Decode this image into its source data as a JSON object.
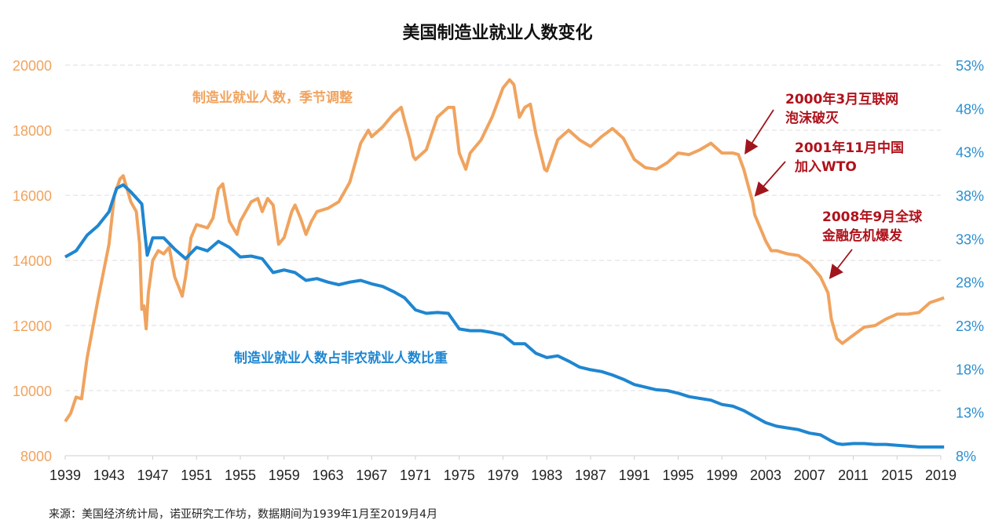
{
  "chart_data": {
    "type": "line",
    "title": "美国制造业就业人数变化",
    "source": "来源：美国经济统计局，诺亚研究工作坊，数据期间为1939年1月至2019月4月",
    "xlim": [
      1939,
      2019
    ],
    "x_ticks": [
      "1939",
      "1943",
      "1947",
      "1951",
      "1955",
      "1959",
      "1963",
      "1967",
      "1971",
      "1975",
      "1979",
      "1983",
      "1987",
      "1991",
      "1995",
      "1999",
      "2003",
      "2007",
      "2011",
      "2015",
      "2019"
    ],
    "y_left": {
      "lim": [
        8000,
        20000
      ],
      "ticks": [
        "8000",
        "10000",
        "12000",
        "14000",
        "16000",
        "18000",
        "20000"
      ],
      "color": "#f0a35e"
    },
    "y_right": {
      "lim": [
        8,
        53
      ],
      "ticks": [
        "8%",
        "13%",
        "18%",
        "23%",
        "28%",
        "33%",
        "38%",
        "43%",
        "48%",
        "53%"
      ],
      "color": "#2a8fd0"
    },
    "grid": "horizontal dashed",
    "series": [
      {
        "name": "制造业就业人数，季节调整",
        "axis": "left",
        "color": "#f0a35e",
        "x": [
          1939,
          1939.5,
          1940,
          1940.5,
          1941,
          1942,
          1943,
          1943.5,
          1944,
          1944.3,
          1945,
          1945.5,
          1945.8,
          1946,
          1946.2,
          1946.4,
          1946.6,
          1947,
          1947.5,
          1948,
          1948.5,
          1949,
          1949.7,
          1950,
          1950.5,
          1951,
          1952,
          1952.5,
          1953,
          1953.4,
          1954,
          1954.7,
          1955,
          1956,
          1956.6,
          1957,
          1957.5,
          1958,
          1958.5,
          1959,
          1959.7,
          1960,
          1960.5,
          1961,
          1961.5,
          1962,
          1963,
          1964,
          1965,
          1966,
          1966.7,
          1967,
          1968,
          1969,
          1969.7,
          1970,
          1970.5,
          1970.8,
          1971,
          1972,
          1973,
          1974,
          1974.5,
          1975,
          1975.6,
          1976,
          1977,
          1978,
          1979,
          1979.6,
          1980,
          1980.5,
          1981,
          1981.5,
          1982,
          1982.8,
          1983,
          1984,
          1985,
          1986,
          1987,
          1988,
          1989,
          1990,
          1991,
          1992,
          1993,
          1994,
          1995,
          1996,
          1997,
          1998,
          1999,
          2000,
          2000.5,
          2001,
          2001.8,
          2002,
          2003,
          2003.5,
          2004,
          2005,
          2006,
          2007,
          2008,
          2008.7,
          2009,
          2009.5,
          2010,
          2011,
          2012,
          2013,
          2014,
          2015,
          2016,
          2017,
          2018,
          2019.3
        ],
        "values": [
          9050,
          9300,
          9800,
          9750,
          11000,
          12800,
          14500,
          16000,
          16500,
          16600,
          15800,
          15500,
          14500,
          12500,
          12600,
          11900,
          13000,
          14000,
          14300,
          14200,
          14400,
          13500,
          12900,
          13500,
          14700,
          15100,
          15000,
          15300,
          16200,
          16350,
          15200,
          14800,
          15200,
          15800,
          15900,
          15500,
          15900,
          15700,
          14500,
          14700,
          15500,
          15700,
          15300,
          14800,
          15200,
          15500,
          15600,
          15800,
          16400,
          17600,
          18000,
          17800,
          18100,
          18500,
          18700,
          18300,
          17700,
          17200,
          17100,
          17400,
          18400,
          18700,
          18700,
          17300,
          16800,
          17300,
          17700,
          18400,
          19300,
          19550,
          19400,
          18400,
          18700,
          18800,
          17900,
          16800,
          16750,
          17700,
          18000,
          17700,
          17500,
          17800,
          18050,
          17750,
          17100,
          16850,
          16800,
          17000,
          17300,
          17250,
          17400,
          17600,
          17300,
          17300,
          17250,
          16800,
          15800,
          15400,
          14600,
          14300,
          14300,
          14200,
          14150,
          13900,
          13500,
          13000,
          12200,
          11600,
          11450,
          11700,
          11950,
          12000,
          12200,
          12350,
          12350,
          12400,
          12700,
          12850
        ]
      },
      {
        "name": "制造业就业人数占非农就业人数比重",
        "axis": "right",
        "color": "#1f86d0",
        "x": [
          1939,
          1940,
          1941,
          1942,
          1943,
          1943.7,
          1944.3,
          1945,
          1946,
          1946.3,
          1946.5,
          1947,
          1948,
          1949,
          1950,
          1951,
          1952,
          1953,
          1954,
          1955,
          1956,
          1957,
          1958,
          1959,
          1960,
          1961,
          1962,
          1963,
          1964,
          1965,
          1966,
          1967,
          1968,
          1969,
          1970,
          1971,
          1972,
          1973,
          1974,
          1975,
          1976,
          1977,
          1978,
          1979,
          1980,
          1981,
          1982,
          1983,
          1984,
          1985,
          1986,
          1987,
          1988,
          1989,
          1990,
          1991,
          1992,
          1993,
          1994,
          1995,
          1996,
          1997,
          1998,
          1999,
          2000,
          2001,
          2002,
          2003,
          2004,
          2005,
          2006,
          2007,
          2008,
          2009,
          2009.5,
          2010,
          2011,
          2012,
          2013,
          2014,
          2015,
          2016,
          2017,
          2018,
          2019.3
        ],
        "values": [
          30.9,
          31.6,
          33.4,
          34.5,
          36.1,
          38.8,
          39.2,
          38.4,
          37.0,
          33.4,
          31.1,
          33.1,
          33.1,
          31.8,
          30.7,
          32.0,
          31.6,
          32.7,
          32.0,
          30.9,
          31.0,
          30.7,
          29.1,
          29.4,
          29.1,
          28.2,
          28.4,
          28.0,
          27.7,
          28.0,
          28.2,
          27.8,
          27.5,
          26.9,
          26.2,
          24.8,
          24.4,
          24.5,
          24.4,
          22.6,
          22.4,
          22.4,
          22.2,
          21.9,
          20.9,
          20.9,
          19.8,
          19.3,
          19.5,
          18.9,
          18.2,
          17.9,
          17.7,
          17.3,
          16.8,
          16.2,
          15.9,
          15.6,
          15.5,
          15.2,
          14.8,
          14.6,
          14.4,
          13.9,
          13.7,
          13.2,
          12.5,
          11.8,
          11.4,
          11.2,
          11.0,
          10.6,
          10.4,
          9.7,
          9.4,
          9.3,
          9.4,
          9.4,
          9.3,
          9.3,
          9.2,
          9.1,
          9.0,
          9.0,
          9.0
        ]
      }
    ],
    "annotations": [
      {
        "text": [
          "2000年3月互联网",
          "泡沫破灭"
        ],
        "color": "#b0121b"
      },
      {
        "text": [
          "2001年11月中国",
          "加入WTO"
        ],
        "color": "#b0121b"
      },
      {
        "text": [
          "2008年9月全球",
          "金融危机爆发"
        ],
        "color": "#b0121b"
      }
    ]
  }
}
